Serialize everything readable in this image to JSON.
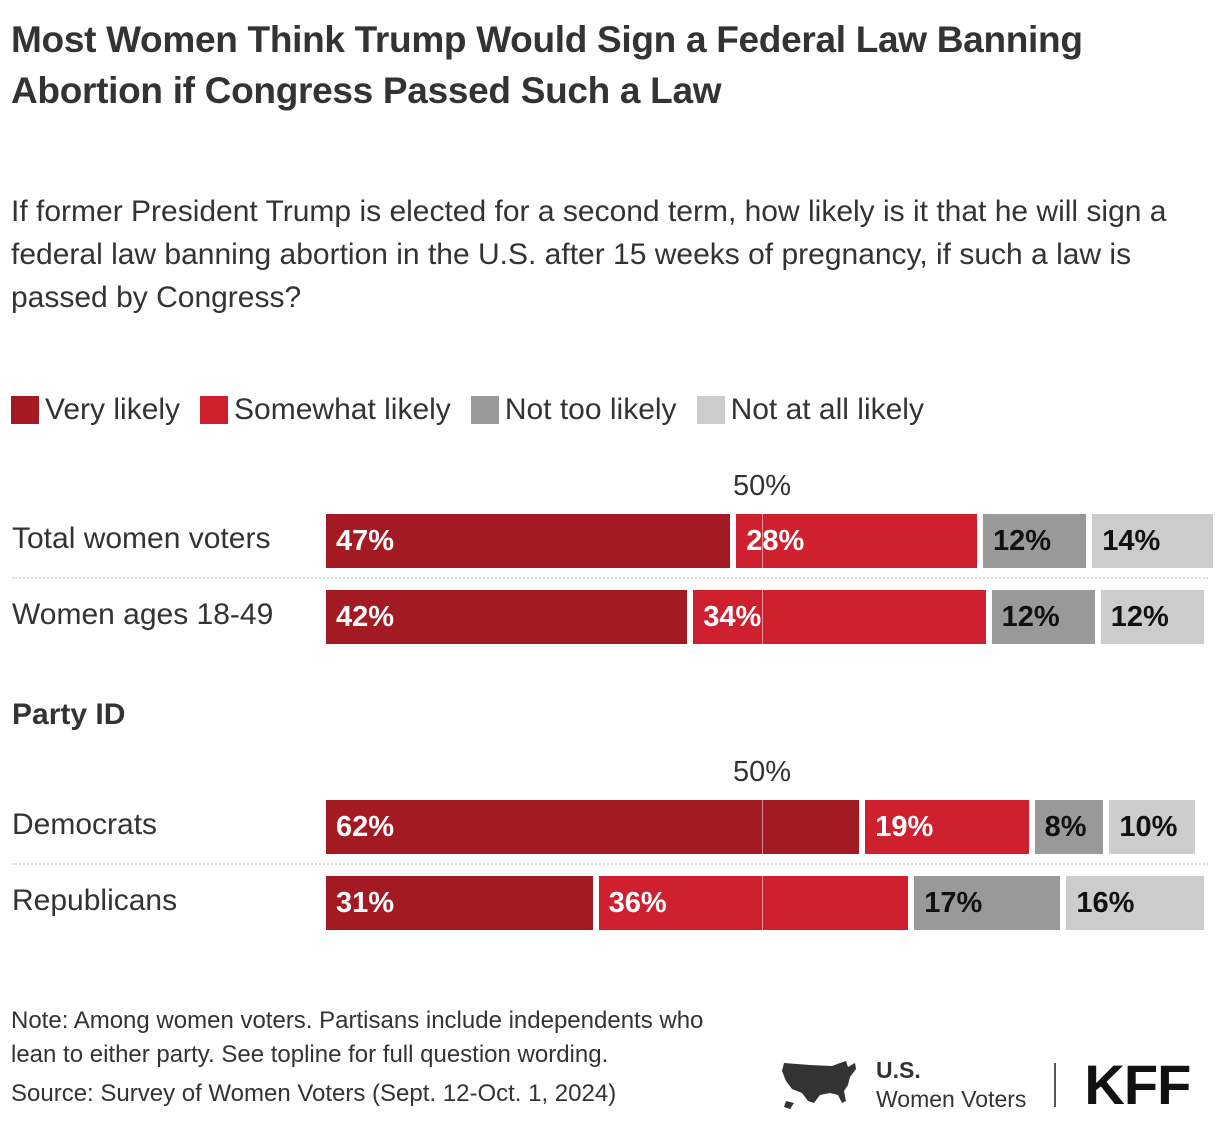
{
  "title": "Most Women Think Trump Would Sign a Federal Law Banning Abortion if Congress Passed Such a Law",
  "subtitle": "If former President Trump is elected for a second term, how likely is it that he will sign a federal law banning abortion in the U.S. after 15 weeks of pregnancy, if such a law is passed by Congress?",
  "note": "Note: Among women voters. Partisans include independents who lean to either party. See topline for full question wording.",
  "source": "Source: Survey of Women Voters (Sept. 12-Oct. 1, 2024)",
  "logo": {
    "line1": "U.S.",
    "line2": "Women Voters",
    "brand": "KFF"
  },
  "chart_data": {
    "type": "bar",
    "orientation": "horizontal-stacked",
    "title": "Most Women Think Trump Would Sign a Federal Law Banning Abortion if Congress Passed Such a Law",
    "reference_line": {
      "value": 50,
      "label": "50%"
    },
    "legend": {
      "placement": "top"
    },
    "series": [
      {
        "name": "Very likely",
        "color": "#a31a23"
      },
      {
        "name": "Somewhat likely",
        "color": "#ce202f"
      },
      {
        "name": "Not too likely",
        "color": "#999999"
      },
      {
        "name": "Not at all likely",
        "color": "#cccccc"
      }
    ],
    "groups": [
      {
        "heading": "",
        "rows": [
          {
            "label": "Total women voters",
            "values": [
              47,
              28,
              12,
              14
            ]
          },
          {
            "label": "Women ages 18-49",
            "values": [
              42,
              34,
              12,
              12
            ]
          }
        ]
      },
      {
        "heading": "Party ID",
        "rows": [
          {
            "label": "Democrats",
            "values": [
              62,
              19,
              8,
              10
            ]
          },
          {
            "label": "Republicans",
            "values": [
              31,
              36,
              17,
              16
            ]
          }
        ]
      }
    ]
  }
}
